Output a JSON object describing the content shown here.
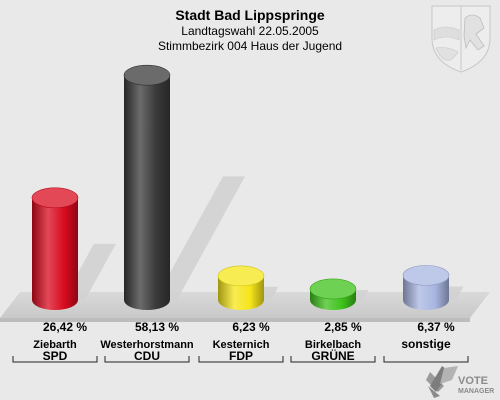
{
  "header": {
    "title": "Stadt Bad Lippspringe",
    "subtitle": "Landtagswahl 22.05.2005",
    "district": "Stimmbezirk 004 Haus der Jugend"
  },
  "chart_data": {
    "type": "bar",
    "unit": "%",
    "categories": [
      "SPD",
      "CDU",
      "FDP",
      "GRÜNE",
      "sonstige"
    ],
    "candidates": [
      "Ziebarth",
      "Westerhorstmann",
      "Kesternich",
      "Birkelbach",
      ""
    ],
    "values": [
      26.42,
      58.13,
      6.23,
      2.85,
      6.37
    ],
    "value_labels": [
      "26,42 %",
      "58,13 %",
      "6,23 %",
      "2,85 %",
      "6,37 %"
    ],
    "colors": [
      "#d90b1f",
      "#3a3a3a",
      "#f5e51a",
      "#3ec21b",
      "#a8b6e0"
    ],
    "ylim": [
      0,
      60
    ]
  },
  "branding": {
    "logo_line1": "VOTE",
    "logo_line2": "MANAGER",
    "crest": "nrw-crest-icon"
  }
}
